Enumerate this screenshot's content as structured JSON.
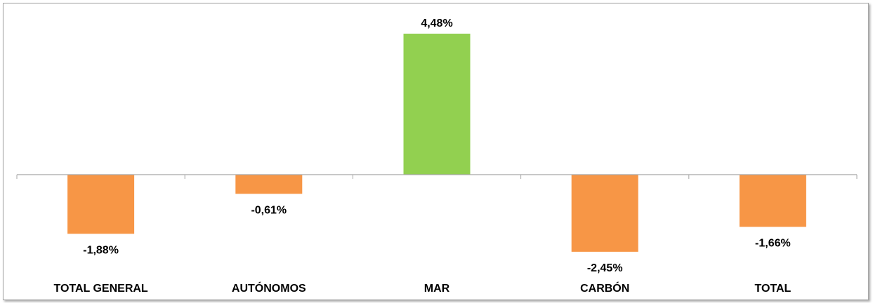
{
  "chart_data": {
    "type": "bar",
    "categories": [
      "TOTAL GENERAL",
      "AUTÓNOMOS",
      "MAR",
      "CARBÓN",
      "TOTAL"
    ],
    "values": [
      -1.88,
      -0.61,
      4.48,
      -2.45,
      -1.66
    ],
    "data_labels": [
      "-1,88%",
      "-0,61%",
      "4,48%",
      "-2,45%",
      "-1,66%"
    ],
    "unit": "%",
    "ylim": [
      -4.5,
      5.1
    ],
    "grid": false,
    "legend": "none",
    "colors": {
      "positive": "#92d050",
      "negative": "#f79646",
      "axis": "#a6a6a6"
    }
  }
}
